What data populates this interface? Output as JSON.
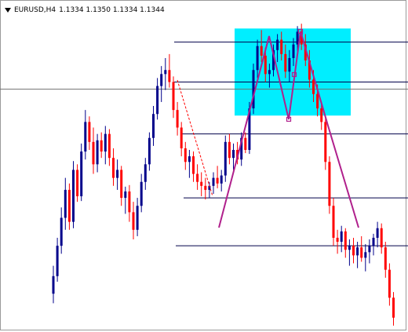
{
  "header": {
    "symbol": "EURUSD,H4",
    "prices": "1.1334 1.1350 1.1334 1.1344"
  },
  "colors": {
    "bull_candle": "#00008b",
    "bear_candle": "#ff0000",
    "doji_candle": "#00aa00",
    "zone_fill": "#00eeff",
    "pattern_line": "#b0208c",
    "level_line": "#00004a",
    "crosshair": "#707070"
  },
  "chart_data": {
    "type": "candlestick",
    "y_range": [
      0,
      423
    ],
    "candles": [
      [
        1.106,
        1.1095,
        1.1048,
        1.1082
      ],
      [
        1.1082,
        1.113,
        1.1075,
        1.112
      ],
      [
        1.112,
        1.1168,
        1.111,
        1.1155
      ],
      [
        1.1155,
        1.1205,
        1.114,
        1.119
      ],
      [
        1.119,
        1.1198,
        1.114,
        1.115
      ],
      [
        1.115,
        1.1226,
        1.1142,
        1.1215
      ],
      [
        1.1215,
        1.1222,
        1.1175,
        1.1182
      ],
      [
        1.1182,
        1.1248,
        1.1176,
        1.1238
      ],
      [
        1.1238,
        1.129,
        1.1228,
        1.1275
      ],
      [
        1.1275,
        1.1282,
        1.124,
        1.125
      ],
      [
        1.125,
        1.1268,
        1.121,
        1.1222
      ],
      [
        1.1222,
        1.126,
        1.1212,
        1.1252
      ],
      [
        1.1252,
        1.1262,
        1.123,
        1.1238
      ],
      [
        1.1238,
        1.127,
        1.1222,
        1.126
      ],
      [
        1.126,
        1.1266,
        1.122,
        1.123
      ],
      [
        1.123,
        1.1242,
        1.1195,
        1.1205
      ],
      [
        1.1205,
        1.1228,
        1.119,
        1.1215
      ],
      [
        1.1215,
        1.122,
        1.117,
        1.118
      ],
      [
        1.118,
        1.1194,
        1.116,
        1.1188
      ],
      [
        1.1188,
        1.1196,
        1.115,
        1.1162
      ],
      [
        1.1162,
        1.1175,
        1.1128,
        1.114
      ],
      [
        1.114,
        1.118,
        1.1132,
        1.117
      ],
      [
        1.117,
        1.121,
        1.1162,
        1.12
      ],
      [
        1.12,
        1.123,
        1.119,
        1.1222
      ],
      [
        1.1222,
        1.1262,
        1.1214,
        1.1255
      ],
      [
        1.1255,
        1.1295,
        1.1245,
        1.1285
      ],
      [
        1.1285,
        1.133,
        1.1278,
        1.132
      ],
      [
        1.132,
        1.1345,
        1.13,
        1.1335
      ],
      [
        1.1335,
        1.1355,
        1.1315,
        1.134
      ],
      [
        1.134,
        1.136,
        1.1318,
        1.1325
      ],
      [
        1.1325,
        1.1332,
        1.128,
        1.129
      ],
      [
        1.129,
        1.13,
        1.1258,
        1.1268
      ],
      [
        1.1268,
        1.1275,
        1.1232,
        1.1242
      ],
      [
        1.1242,
        1.125,
        1.1215,
        1.1225
      ],
      [
        1.1225,
        1.124,
        1.1205,
        1.1232
      ],
      [
        1.1232,
        1.1238,
        1.12,
        1.121
      ],
      [
        1.121,
        1.1222,
        1.119,
        1.12
      ],
      [
        1.12,
        1.1212,
        1.1182,
        1.1195
      ],
      [
        1.1195,
        1.1205,
        1.1178,
        1.119
      ],
      [
        1.119,
        1.12,
        1.118,
        1.1195
      ],
      [
        1.1195,
        1.1212,
        1.1185,
        1.1205
      ],
      [
        1.1205,
        1.122,
        1.1192,
        1.1198
      ],
      [
        1.1198,
        1.1215,
        1.1188,
        1.1208
      ],
      [
        1.1208,
        1.1258,
        1.12,
        1.125
      ],
      [
        1.125,
        1.126,
        1.1222,
        1.123
      ],
      [
        1.123,
        1.1248,
        1.1215,
        1.124
      ],
      [
        1.124,
        1.125,
        1.1222,
        1.1228
      ],
      [
        1.1228,
        1.1262,
        1.122,
        1.1255
      ],
      [
        1.1255,
        1.1262,
        1.1236,
        1.124
      ],
      [
        1.124,
        1.13,
        1.1235,
        1.1292
      ],
      [
        1.1292,
        1.1348,
        1.1285,
        1.134
      ],
      [
        1.134,
        1.1378,
        1.133,
        1.137
      ],
      [
        1.137,
        1.139,
        1.135,
        1.1358
      ],
      [
        1.1358,
        1.1368,
        1.1325,
        1.1335
      ],
      [
        1.1335,
        1.1348,
        1.1318,
        1.134
      ],
      [
        1.134,
        1.1372,
        1.1332,
        1.1365
      ],
      [
        1.1365,
        1.1385,
        1.135,
        1.1378
      ],
      [
        1.1378,
        1.1388,
        1.1352,
        1.136
      ],
      [
        1.136,
        1.1372,
        1.133,
        1.1338
      ],
      [
        1.1338,
        1.1365,
        1.1325,
        1.1355
      ],
      [
        1.1355,
        1.138,
        1.1345,
        1.1372
      ],
      [
        1.1372,
        1.1395,
        1.136,
        1.1388
      ],
      [
        1.1388,
        1.1398,
        1.1365,
        1.1372
      ],
      [
        1.1372,
        1.1385,
        1.1345,
        1.1352
      ],
      [
        1.1352,
        1.1365,
        1.1318,
        1.1328
      ],
      [
        1.1328,
        1.134,
        1.13,
        1.131
      ],
      [
        1.131,
        1.1322,
        1.1282,
        1.1292
      ],
      [
        1.1292,
        1.13,
        1.1265,
        1.1275
      ],
      [
        1.1275,
        1.1282,
        1.1215,
        1.1225
      ],
      [
        1.1225,
        1.1232,
        1.116,
        1.117
      ],
      [
        1.117,
        1.118,
        1.112,
        1.113
      ],
      [
        1.113,
        1.114,
        1.111,
        1.1125
      ],
      [
        1.1125,
        1.1145,
        1.1112,
        1.1138
      ],
      [
        1.1138,
        1.1142,
        1.1105,
        1.1115
      ],
      [
        1.1115,
        1.1128,
        1.1095,
        1.112
      ],
      [
        1.112,
        1.113,
        1.1098,
        1.1108
      ],
      [
        1.1108,
        1.1125,
        1.1092,
        1.1118
      ],
      [
        1.1118,
        1.1132,
        1.11,
        1.1105
      ],
      [
        1.1105,
        1.1122,
        1.1088,
        1.1112
      ],
      [
        1.1112,
        1.1128,
        1.1098,
        1.112
      ],
      [
        1.112,
        1.1135,
        1.1108,
        1.113
      ],
      [
        1.113,
        1.115,
        1.1118,
        1.1142
      ],
      [
        1.1142,
        1.1148,
        1.111,
        1.1118
      ],
      [
        1.1118,
        1.1125,
        1.108,
        1.109
      ],
      [
        1.109,
        1.1098,
        1.1045,
        1.1055
      ],
      [
        1.1055,
        1.1062,
        1.102,
        1.103
      ]
    ],
    "levels": [
      1.1375,
      1.1325,
      1.126,
      1.118,
      1.112
    ],
    "zone": {
      "price_high": 1.1392,
      "price_low": 1.1283
    },
    "crosshair_price": 1.1316
  }
}
